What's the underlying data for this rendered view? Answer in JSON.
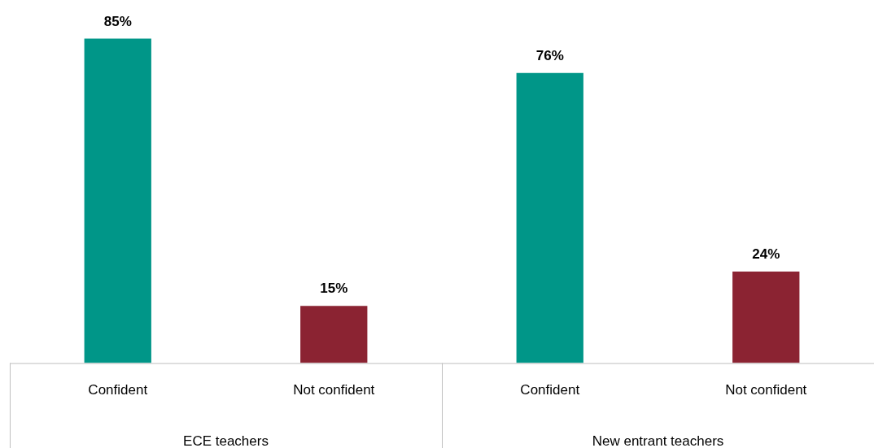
{
  "chart_data": {
    "type": "bar",
    "categories": [
      "Confident",
      "Not confident",
      "Confident",
      "Not confident"
    ],
    "values": [
      85,
      15,
      76,
      24
    ],
    "colors": [
      "#009688",
      "#8b2332",
      "#009688",
      "#8b2332"
    ],
    "value_labels": [
      "85%",
      "15%",
      "76%",
      "24%"
    ],
    "annotations": [
      "ECE teachers",
      "New entrant teachers"
    ],
    "grid": false,
    "legend": false
  }
}
